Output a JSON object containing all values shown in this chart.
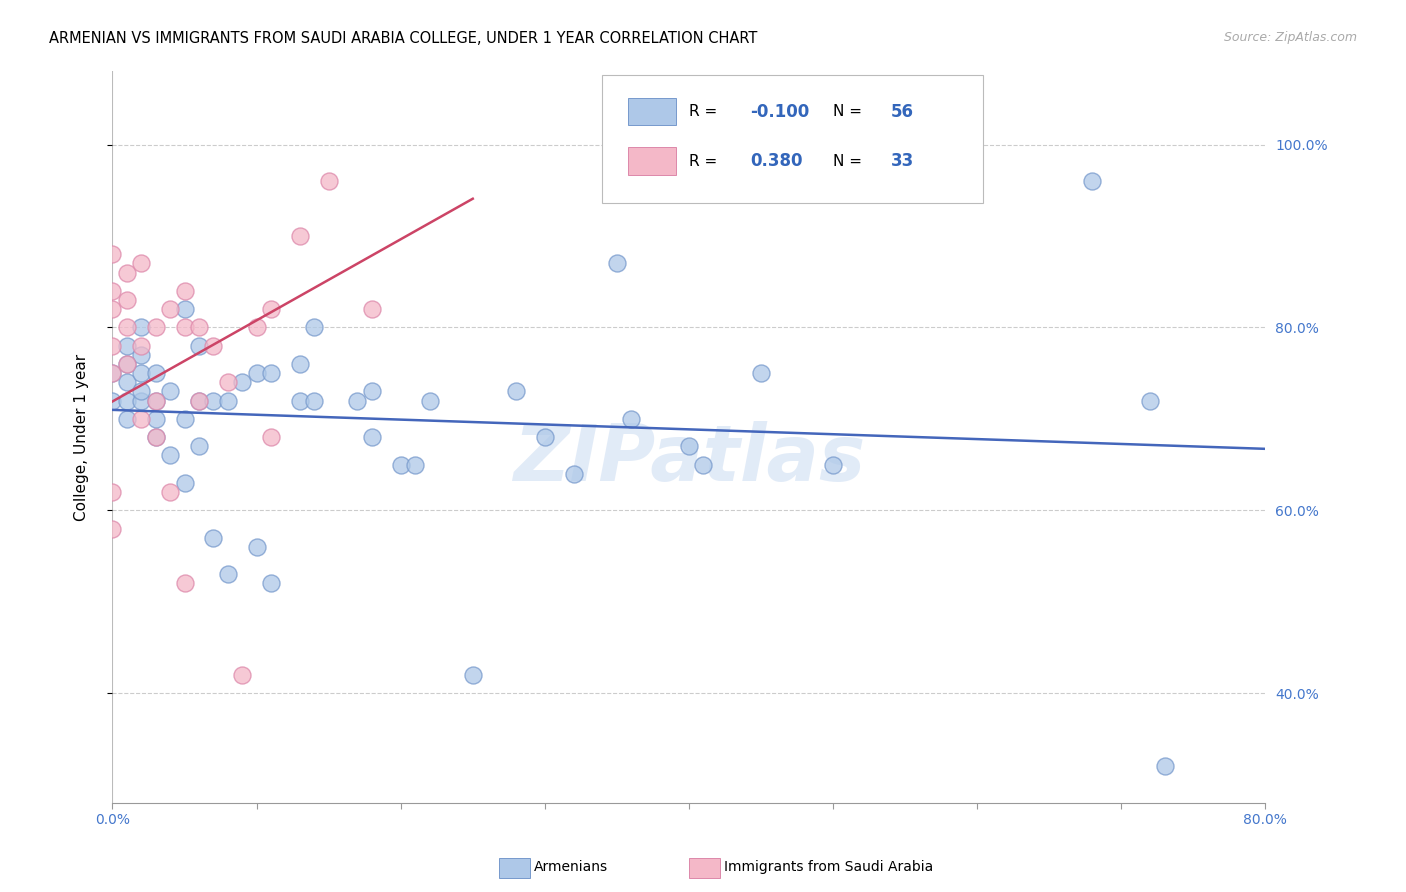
{
  "title": "ARMENIAN VS IMMIGRANTS FROM SAUDI ARABIA COLLEGE, UNDER 1 YEAR CORRELATION CHART",
  "source": "Source: ZipAtlas.com",
  "ylabel": "College, Under 1 year",
  "ytick_labels": [
    "40.0%",
    "60.0%",
    "80.0%",
    "100.0%"
  ],
  "ytick_values": [
    0.4,
    0.6,
    0.8,
    1.0
  ],
  "watermark": "ZIPatlas",
  "xlim": [
    0.0,
    0.8
  ],
  "ylim": [
    0.28,
    1.08
  ],
  "background_color": "#ffffff",
  "grid_color": "#cccccc",
  "scatter_blue_color": "#aec8e8",
  "scatter_pink_color": "#f4b8c8",
  "scatter_blue_edge": "#7799cc",
  "scatter_pink_edge": "#dd88aa",
  "line_blue_color": "#4466bb",
  "line_pink_color": "#cc4466",
  "blue_R": -0.1,
  "pink_R": 0.38,
  "axis_label_color": "#4477cc",
  "blue_points_x": [
    0.0,
    0.0,
    0.01,
    0.01,
    0.01,
    0.01,
    0.01,
    0.02,
    0.02,
    0.02,
    0.02,
    0.02,
    0.03,
    0.03,
    0.03,
    0.03,
    0.04,
    0.04,
    0.05,
    0.05,
    0.05,
    0.06,
    0.06,
    0.06,
    0.07,
    0.07,
    0.08,
    0.08,
    0.09,
    0.1,
    0.1,
    0.11,
    0.11,
    0.13,
    0.13,
    0.14,
    0.14,
    0.17,
    0.18,
    0.18,
    0.2,
    0.21,
    0.22,
    0.25,
    0.28,
    0.3,
    0.32,
    0.35,
    0.36,
    0.4,
    0.41,
    0.45,
    0.5,
    0.68,
    0.73,
    0.72
  ],
  "blue_points_y": [
    0.72,
    0.75,
    0.7,
    0.72,
    0.74,
    0.76,
    0.78,
    0.72,
    0.73,
    0.75,
    0.77,
    0.8,
    0.68,
    0.7,
    0.72,
    0.75,
    0.66,
    0.73,
    0.63,
    0.7,
    0.82,
    0.67,
    0.72,
    0.78,
    0.57,
    0.72,
    0.53,
    0.72,
    0.74,
    0.56,
    0.75,
    0.52,
    0.75,
    0.72,
    0.76,
    0.72,
    0.8,
    0.72,
    0.68,
    0.73,
    0.65,
    0.65,
    0.72,
    0.42,
    0.73,
    0.68,
    0.64,
    0.87,
    0.7,
    0.67,
    0.65,
    0.75,
    0.65,
    0.96,
    0.32,
    0.72
  ],
  "pink_points_x": [
    0.0,
    0.0,
    0.0,
    0.0,
    0.0,
    0.0,
    0.0,
    0.01,
    0.01,
    0.01,
    0.01,
    0.02,
    0.02,
    0.02,
    0.03,
    0.03,
    0.03,
    0.04,
    0.04,
    0.05,
    0.05,
    0.05,
    0.06,
    0.06,
    0.07,
    0.08,
    0.09,
    0.1,
    0.11,
    0.11,
    0.13,
    0.15,
    0.18
  ],
  "pink_points_y": [
    0.58,
    0.62,
    0.75,
    0.78,
    0.82,
    0.84,
    0.88,
    0.76,
    0.8,
    0.83,
    0.86,
    0.7,
    0.78,
    0.87,
    0.68,
    0.72,
    0.8,
    0.62,
    0.82,
    0.52,
    0.8,
    0.84,
    0.72,
    0.8,
    0.78,
    0.74,
    0.42,
    0.8,
    0.68,
    0.82,
    0.9,
    0.96,
    0.82
  ],
  "footer_labels": [
    "Armenians",
    "Immigrants from Saudi Arabia"
  ],
  "footer_colors": [
    "#aec8e8",
    "#f4b8c8"
  ],
  "footer_edge_colors": [
    "#7799cc",
    "#dd88aa"
  ]
}
